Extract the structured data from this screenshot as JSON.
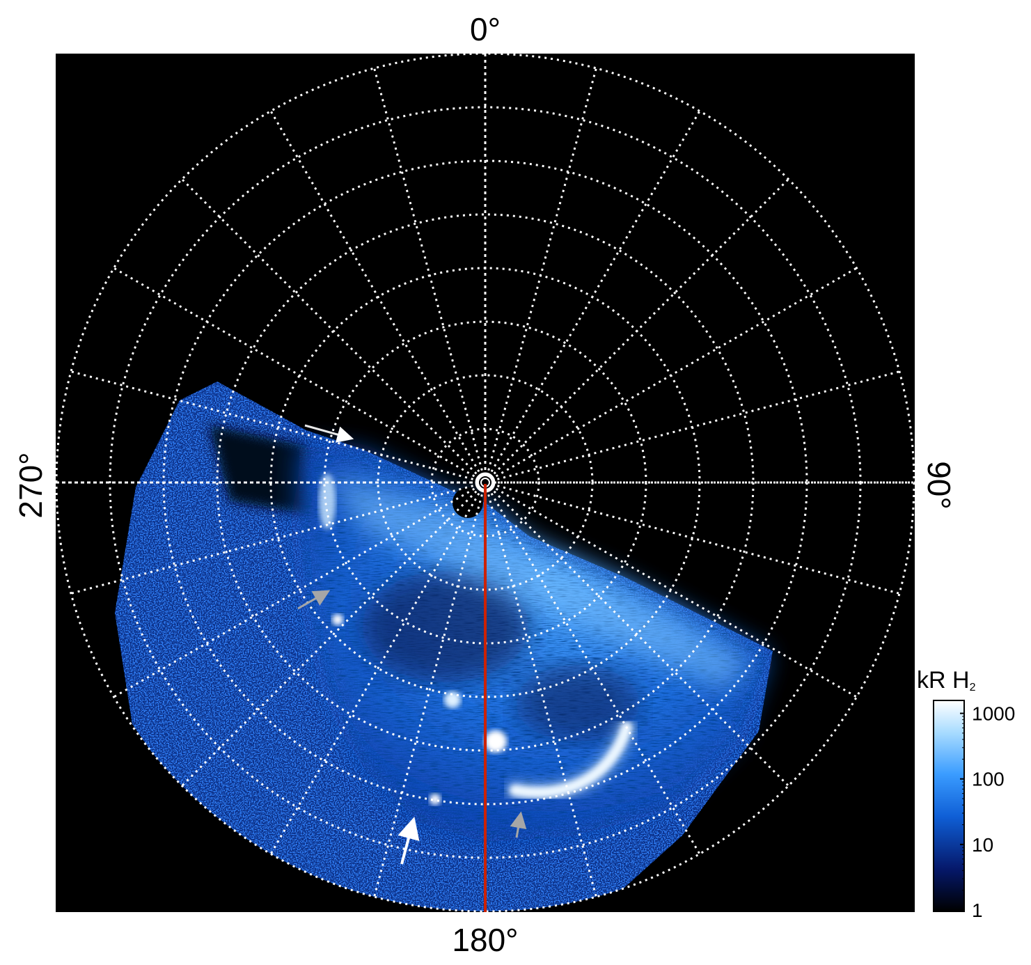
{
  "figure": {
    "labels": {
      "top": "0°",
      "bottom": "180°",
      "left": "270°",
      "right": "90°"
    },
    "colorbar": {
      "title": "kR H",
      "title_subscript": "2",
      "ticks": [
        "1000",
        "100",
        "10",
        "1"
      ],
      "tick_values": [
        1000,
        100,
        10,
        1
      ],
      "scale": "log",
      "range": [
        1,
        1500
      ],
      "colors": [
        "#000000",
        "#05186a",
        "#0f5fd6",
        "#3a9cff",
        "#a9dcff",
        "#ffffff"
      ]
    },
    "grid": {
      "latitude_rings": 8,
      "meridian_spacing_deg": 15,
      "style": "dotted",
      "color": "#ffffff"
    },
    "colors": {
      "background": "#000000",
      "meridian_line": "#cc2200",
      "arrow_white": "#ffffff",
      "arrow_grey": "#a6a6a6",
      "aurora_bright": "#ffffff",
      "aurora_mid": "#2a7fe6",
      "aurora_dark": "#06205a"
    }
  }
}
